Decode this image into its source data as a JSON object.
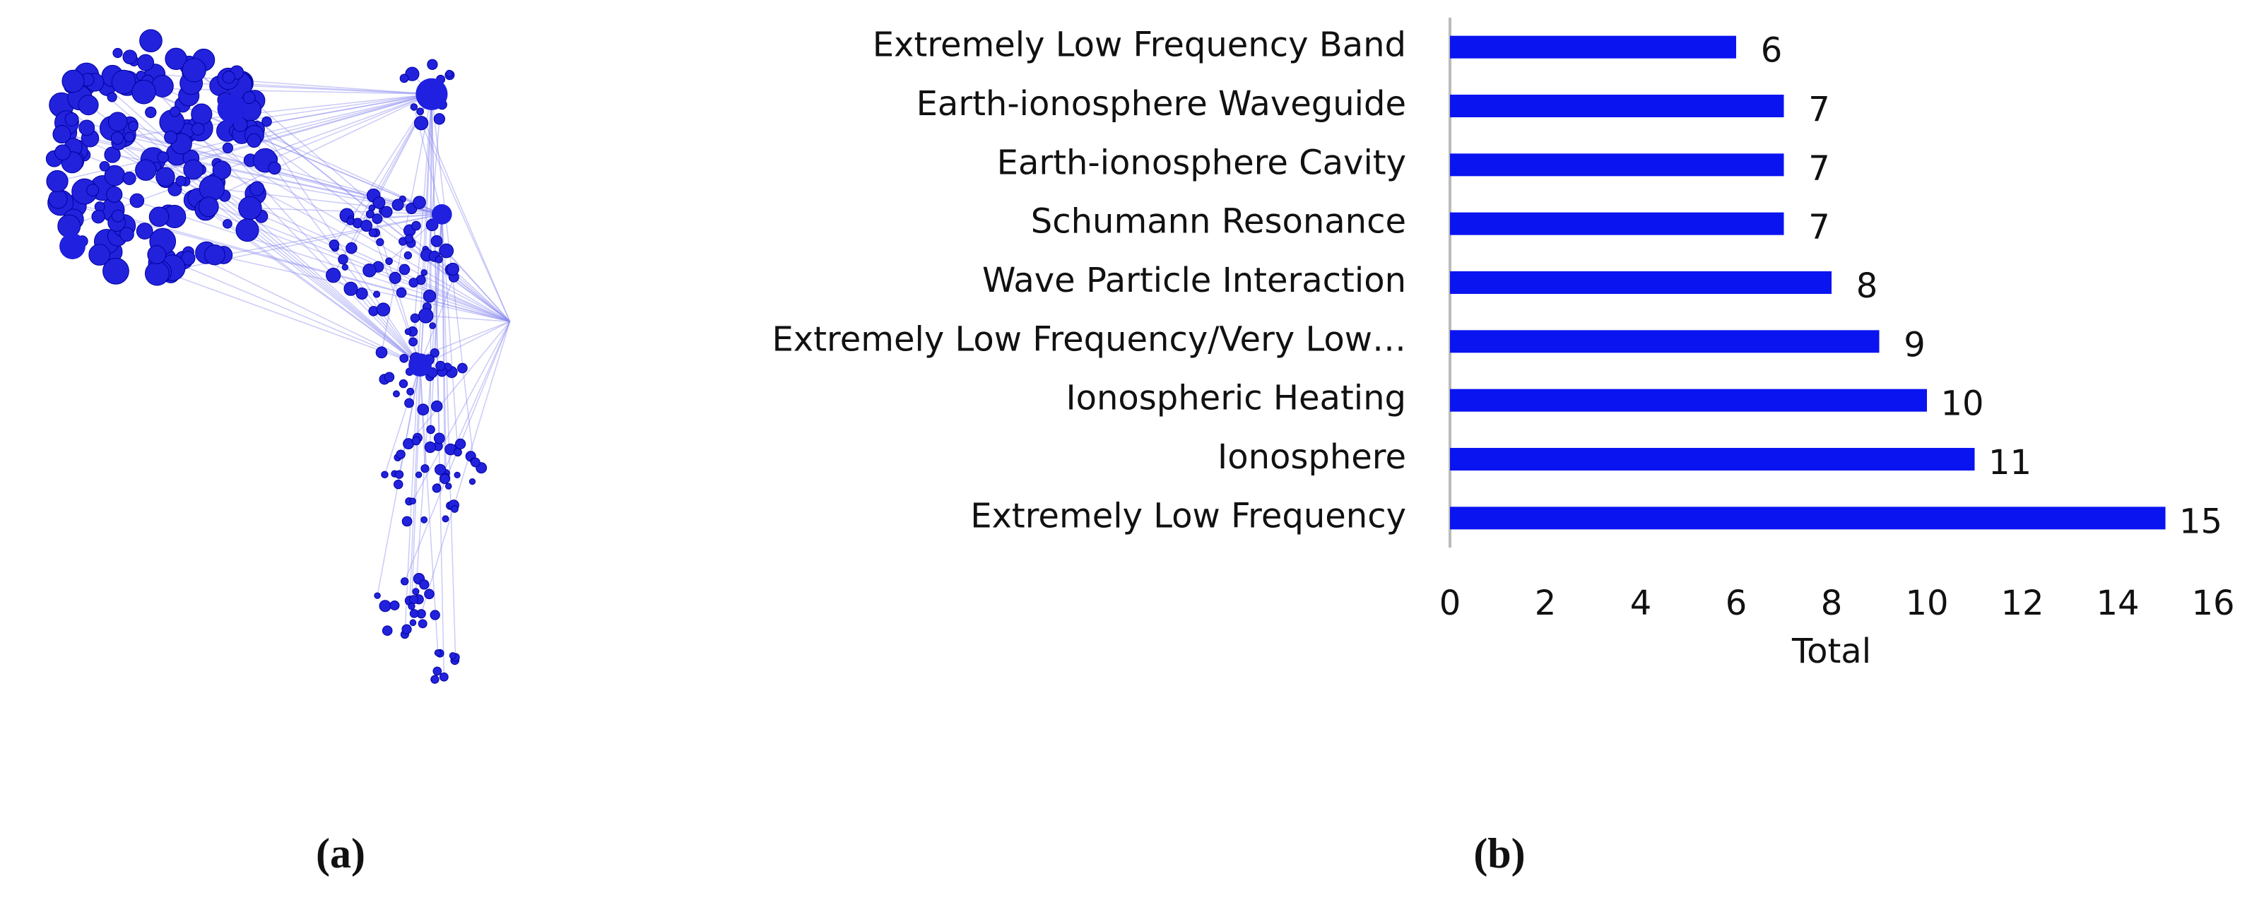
{
  "panel_labels": [
    "(a)",
    "(b)"
  ],
  "chart_data": {
    "type": "barh",
    "categories": [
      "Extremely Low Frequency Band",
      "Earth-ionosphere Waveguide ",
      "Earth-ionosphere Cavity",
      "Schumann Resonance ",
      "Wave Particle Interaction",
      "Extremely Low Frequency/Very Low…",
      "Ionospheric Heating",
      "Ionosphere",
      "Extremely Low Frequency"
    ],
    "values": [
      6,
      7,
      7,
      7,
      8,
      9,
      10,
      11,
      15
    ],
    "color": "#0a14f0",
    "xlabel": "Total",
    "xlim": [
      0,
      16
    ],
    "xticks": [
      0,
      2,
      4,
      6,
      8,
      10,
      12,
      14,
      16
    ],
    "grid": false
  }
}
